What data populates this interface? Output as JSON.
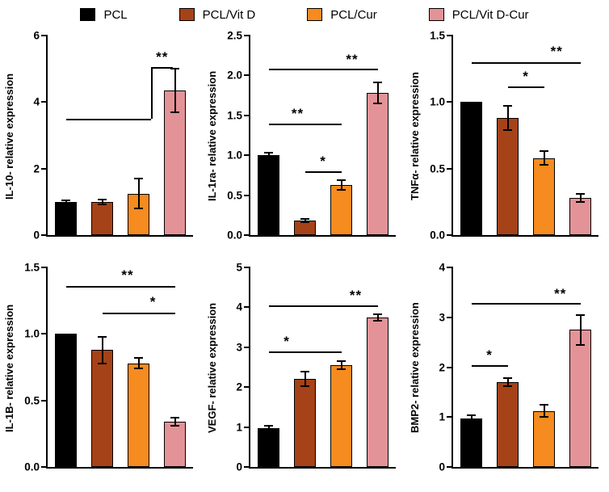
{
  "legend": {
    "items": [
      {
        "label": "PCL",
        "color": "#000000"
      },
      {
        "label": "PCL/Vit D",
        "color": "#A64217"
      },
      {
        "label": "PCL/Cur",
        "color": "#F68B1F"
      },
      {
        "label": "PCL/Vit D-Cur",
        "color": "#E39398"
      }
    ]
  },
  "chart_data": [
    {
      "type": "bar",
      "ylabel": "IL-10- relative expression",
      "categories": [
        "PCL",
        "PCL/Vit D",
        "PCL/Cur",
        "PCL/Vit D-Cur"
      ],
      "values": [
        1.0,
        1.0,
        1.25,
        4.35
      ],
      "errors": [
        0.04,
        0.08,
        0.45,
        0.65
      ],
      "ylim": [
        0,
        6
      ],
      "yticks": [
        "0",
        "2",
        "4",
        "6"
      ],
      "sig": {
        "segments": [
          {
            "x1": 0.5,
            "y1": 3.5,
            "x2": 2.85,
            "y2": 3.5
          },
          {
            "x1": 2.85,
            "y1": 3.5,
            "x2": 2.85,
            "y2": 5.05
          },
          {
            "x1": 2.85,
            "y1": 5.05,
            "x2": 3.45,
            "y2": 5.05
          }
        ],
        "labels": [
          {
            "x": 3.15,
            "y": 5.1,
            "text": "**"
          }
        ]
      }
    },
    {
      "type": "bar",
      "ylabel": "IL-1ra- relative expression",
      "categories": [
        "PCL",
        "PCL/Vit D",
        "PCL/Cur",
        "PCL/Vit D-Cur"
      ],
      "values": [
        1.0,
        0.18,
        0.63,
        1.78
      ],
      "errors": [
        0.03,
        0.02,
        0.06,
        0.13
      ],
      "ylim": [
        0,
        2.5
      ],
      "yticks": [
        "0.0",
        "0.5",
        "1.0",
        "1.5",
        "2.0",
        "2.5"
      ],
      "sig": {
        "segments": [
          {
            "x1": 1.5,
            "y1": 0.8,
            "x2": 2.5,
            "y2": 0.8
          },
          {
            "x1": 0.5,
            "y1": 1.4,
            "x2": 2.5,
            "y2": 1.4
          },
          {
            "x1": 0.5,
            "y1": 2.08,
            "x2": 3.5,
            "y2": 2.08
          }
        ],
        "labels": [
          {
            "x": 2.0,
            "y": 0.82,
            "text": "*"
          },
          {
            "x": 1.3,
            "y": 1.42,
            "text": "**"
          },
          {
            "x": 2.8,
            "y": 2.1,
            "text": "**"
          }
        ]
      }
    },
    {
      "type": "bar",
      "ylabel": "TNFα- relative expression",
      "categories": [
        "PCL",
        "PCL/Vit D",
        "PCL/Cur",
        "PCL/Vit D-Cur"
      ],
      "values": [
        1.0,
        0.88,
        0.58,
        0.28
      ],
      "errors": [
        0,
        0.09,
        0.05,
        0.03
      ],
      "ylim": [
        0,
        1.5
      ],
      "yticks": [
        "0.0",
        "0.5",
        "1.0",
        "1.5"
      ],
      "sig": {
        "segments": [
          {
            "x1": 1.5,
            "y1": 1.12,
            "x2": 2.5,
            "y2": 1.12
          },
          {
            "x1": 0.5,
            "y1": 1.3,
            "x2": 3.5,
            "y2": 1.3
          }
        ],
        "labels": [
          {
            "x": 2.0,
            "y": 1.13,
            "text": "*"
          },
          {
            "x": 2.85,
            "y": 1.32,
            "text": "**"
          }
        ]
      }
    },
    {
      "type": "bar",
      "ylabel": "IL-1B- relative expression",
      "categories": [
        "PCL",
        "PCL/Vit D",
        "PCL/Cur",
        "PCL/Vit D-Cur"
      ],
      "values": [
        1.0,
        0.88,
        0.78,
        0.34
      ],
      "errors": [
        0,
        0.1,
        0.04,
        0.03
      ],
      "ylim": [
        0,
        1.5
      ],
      "yticks": [
        "0.0",
        "0.5",
        "1.0",
        "1.5"
      ],
      "sig": {
        "segments": [
          {
            "x1": 1.5,
            "y1": 1.16,
            "x2": 3.5,
            "y2": 1.16
          },
          {
            "x1": 0.5,
            "y1": 1.36,
            "x2": 3.5,
            "y2": 1.36
          }
        ],
        "labels": [
          {
            "x": 2.9,
            "y": 1.18,
            "text": "*"
          },
          {
            "x": 2.2,
            "y": 1.38,
            "text": "**"
          }
        ]
      }
    },
    {
      "type": "bar",
      "ylabel": "VEGF- relative expression",
      "categories": [
        "PCL",
        "PCL/Vit D",
        "PCL/Cur",
        "PCL/Vit D-Cur"
      ],
      "values": [
        0.97,
        2.2,
        2.55,
        3.75
      ],
      "errors": [
        0.07,
        0.18,
        0.1,
        0.08
      ],
      "ylim": [
        0,
        5
      ],
      "yticks": [
        "0",
        "1",
        "2",
        "3",
        "4",
        "5"
      ],
      "sig": {
        "segments": [
          {
            "x1": 0.5,
            "y1": 2.9,
            "x2": 2.5,
            "y2": 2.9
          },
          {
            "x1": 0.5,
            "y1": 4.05,
            "x2": 3.5,
            "y2": 4.05
          }
        ],
        "labels": [
          {
            "x": 1.0,
            "y": 2.93,
            "text": "*"
          },
          {
            "x": 2.9,
            "y": 4.08,
            "text": "**"
          }
        ]
      }
    },
    {
      "type": "bar",
      "ylabel": "BMP2- relative expression",
      "categories": [
        "PCL",
        "PCL/Vit D",
        "PCL/Cur",
        "PCL/Vit D-Cur"
      ],
      "values": [
        0.97,
        1.7,
        1.12,
        2.75
      ],
      "errors": [
        0.06,
        0.08,
        0.12,
        0.3
      ],
      "ylim": [
        0,
        4
      ],
      "yticks": [
        "0",
        "1",
        "2",
        "3",
        "4"
      ],
      "sig": {
        "segments": [
          {
            "x1": 0.5,
            "y1": 2.04,
            "x2": 1.5,
            "y2": 2.04
          },
          {
            "x1": 0.5,
            "y1": 3.28,
            "x2": 3.5,
            "y2": 3.28
          }
        ],
        "labels": [
          {
            "x": 1.0,
            "y": 2.07,
            "text": "*"
          },
          {
            "x": 2.95,
            "y": 3.31,
            "text": "**"
          }
        ]
      }
    }
  ]
}
